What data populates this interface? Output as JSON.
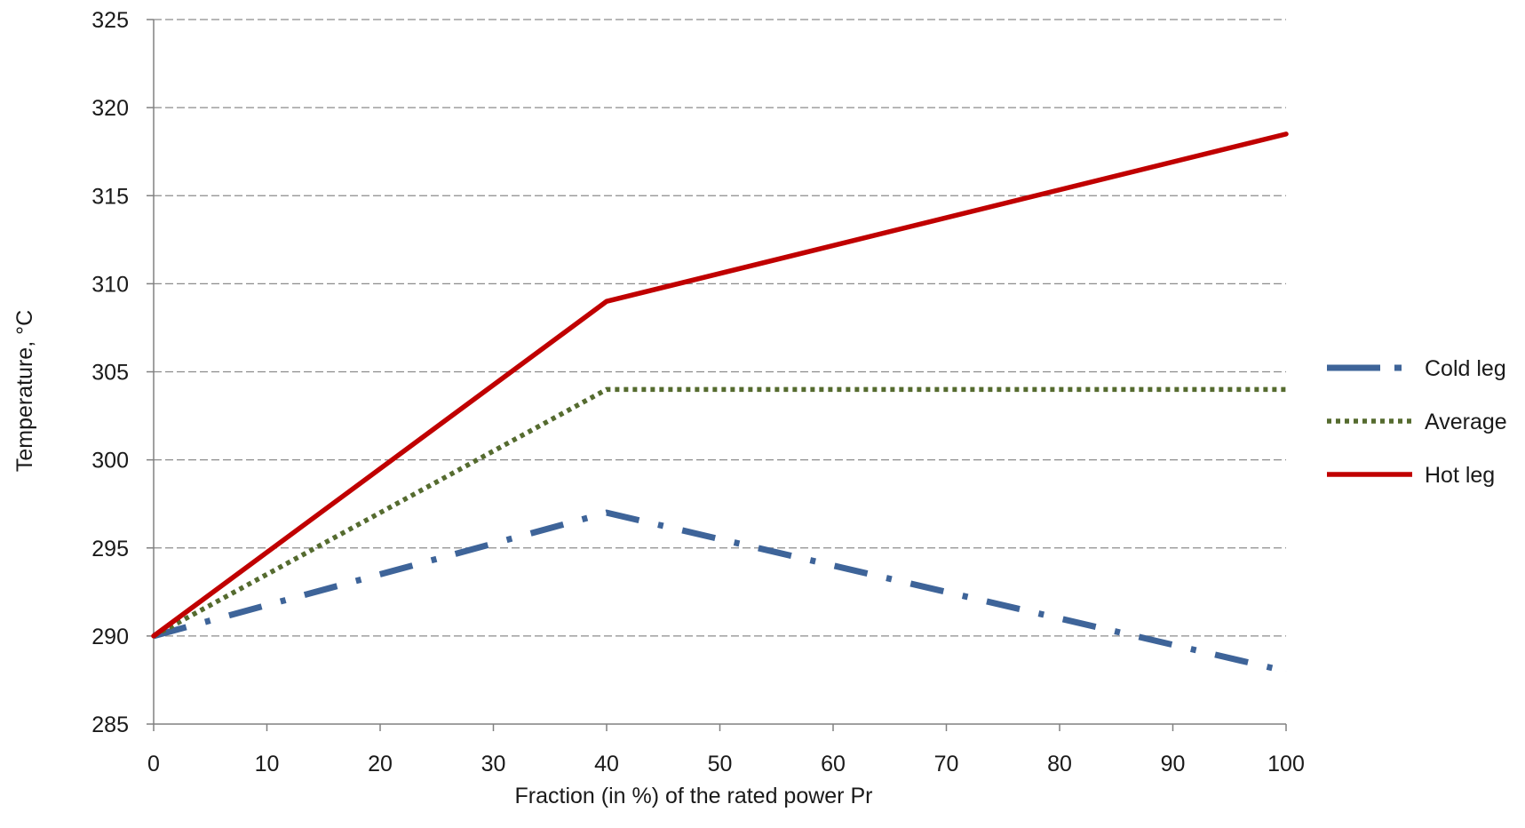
{
  "chart_data": {
    "type": "line",
    "title": "",
    "xlabel": "Fraction (in %) of the rated power Pr",
    "ylabel": "Temperature, °C",
    "xlim": [
      0,
      100
    ],
    "ylim": [
      285,
      325
    ],
    "x_ticks": [
      0,
      10,
      20,
      30,
      40,
      50,
      60,
      70,
      80,
      90,
      100
    ],
    "y_ticks": [
      285,
      290,
      295,
      300,
      305,
      310,
      315,
      320,
      325
    ],
    "grid": true,
    "legend_position": "right",
    "series": [
      {
        "name": "Cold leg",
        "style": "dash-dot",
        "color": "#3e6499",
        "x": [
          0,
          40,
          100
        ],
        "y": [
          290,
          297,
          288
        ]
      },
      {
        "name": "Average",
        "style": "dotted",
        "color": "#556b2f",
        "x": [
          0,
          40,
          100
        ],
        "y": [
          290,
          304,
          304
        ]
      },
      {
        "name": "Hot leg",
        "style": "solid",
        "color": "#c00000",
        "x": [
          0,
          40,
          100
        ],
        "y": [
          290,
          309,
          318.5
        ]
      }
    ]
  }
}
